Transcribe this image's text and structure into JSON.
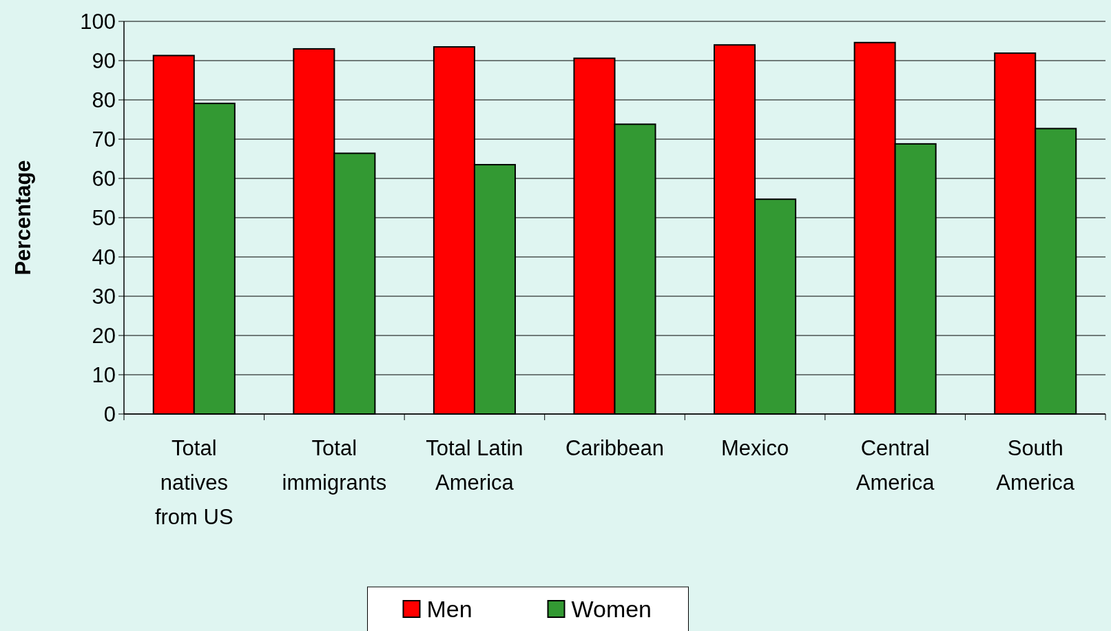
{
  "chart_data": {
    "type": "bar",
    "ylabel": "Percentage",
    "categories": [
      "Total natives from US",
      "Total immigrants",
      "Total Latin America",
      "Caribbean",
      "Mexico",
      "Central America",
      "South America"
    ],
    "series": [
      {
        "name": "Men",
        "color": "#ff0000",
        "values": [
          91.3,
          93.0,
          93.5,
          90.6,
          94.0,
          94.6,
          91.9
        ]
      },
      {
        "name": "Women",
        "color": "#339933",
        "values": [
          79.1,
          66.4,
          63.5,
          73.8,
          54.7,
          68.8,
          72.7
        ]
      }
    ],
    "ylim": [
      0,
      100
    ],
    "yticks": [
      0,
      10,
      20,
      30,
      40,
      50,
      60,
      70,
      80,
      90,
      100
    ],
    "grid": "y",
    "legend": "bottom"
  }
}
